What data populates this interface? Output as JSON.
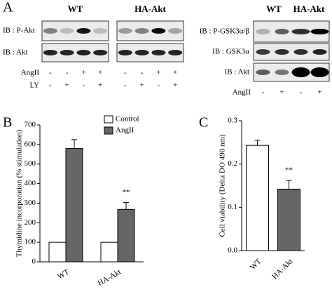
{
  "panel_labels": [
    "A",
    "B",
    "C"
  ],
  "blots_left": {
    "groups": [
      "WT",
      "HA-Akt"
    ],
    "rows": [
      "IB : P-Akt",
      "IB : Akt"
    ],
    "conditions": [
      {
        "label": "AngII",
        "signs": [
          "-",
          "-",
          "+",
          "+",
          "-",
          "-",
          "+",
          "+"
        ]
      },
      {
        "label": "LY",
        "signs": [
          "-",
          "+",
          "-",
          "+",
          "-",
          "+",
          "-",
          "+"
        ]
      }
    ]
  },
  "blots_right": {
    "groups": [
      "WT",
      "HA-Akt"
    ],
    "rows": [
      "IB : P-GSK3α/β",
      "IB : GSK3α",
      "IB : Akt"
    ],
    "conditions": [
      {
        "label": "AngII",
        "signs": [
          "-",
          "+",
          "-",
          "+"
        ]
      }
    ]
  },
  "chart_data": [
    {
      "type": "bar",
      "y_label": "Thymidine incorporation (% stimulation)",
      "categories": [
        "WT",
        "HA-Akt"
      ],
      "series": [
        {
          "name": "Control",
          "color": "#ffffff",
          "values": [
            100,
            100
          ]
        },
        {
          "name": "AngII",
          "color": "#666666",
          "values": [
            580,
            268
          ],
          "errors": [
            45,
            35
          ]
        }
      ],
      "ylim": [
        0,
        700
      ],
      "yticks": [
        0,
        100,
        200,
        300,
        400,
        500,
        600,
        700
      ],
      "legend": "upper right",
      "annotation": "**"
    },
    {
      "type": "bar",
      "y_label": "Cell viability (Delta DO 490 nm)",
      "categories": [
        "WT",
        "HA-Akt"
      ],
      "values": [
        0.243,
        0.142
      ],
      "errors": [
        0.012,
        0.02
      ],
      "colors": [
        "#ffffff",
        "#666666"
      ],
      "ylim": [
        0,
        0.3
      ],
      "yticks": [
        {
          "value": 0,
          "label": "0.0"
        },
        0.1,
        0.2,
        0.3
      ],
      "annotation": "**"
    }
  ]
}
